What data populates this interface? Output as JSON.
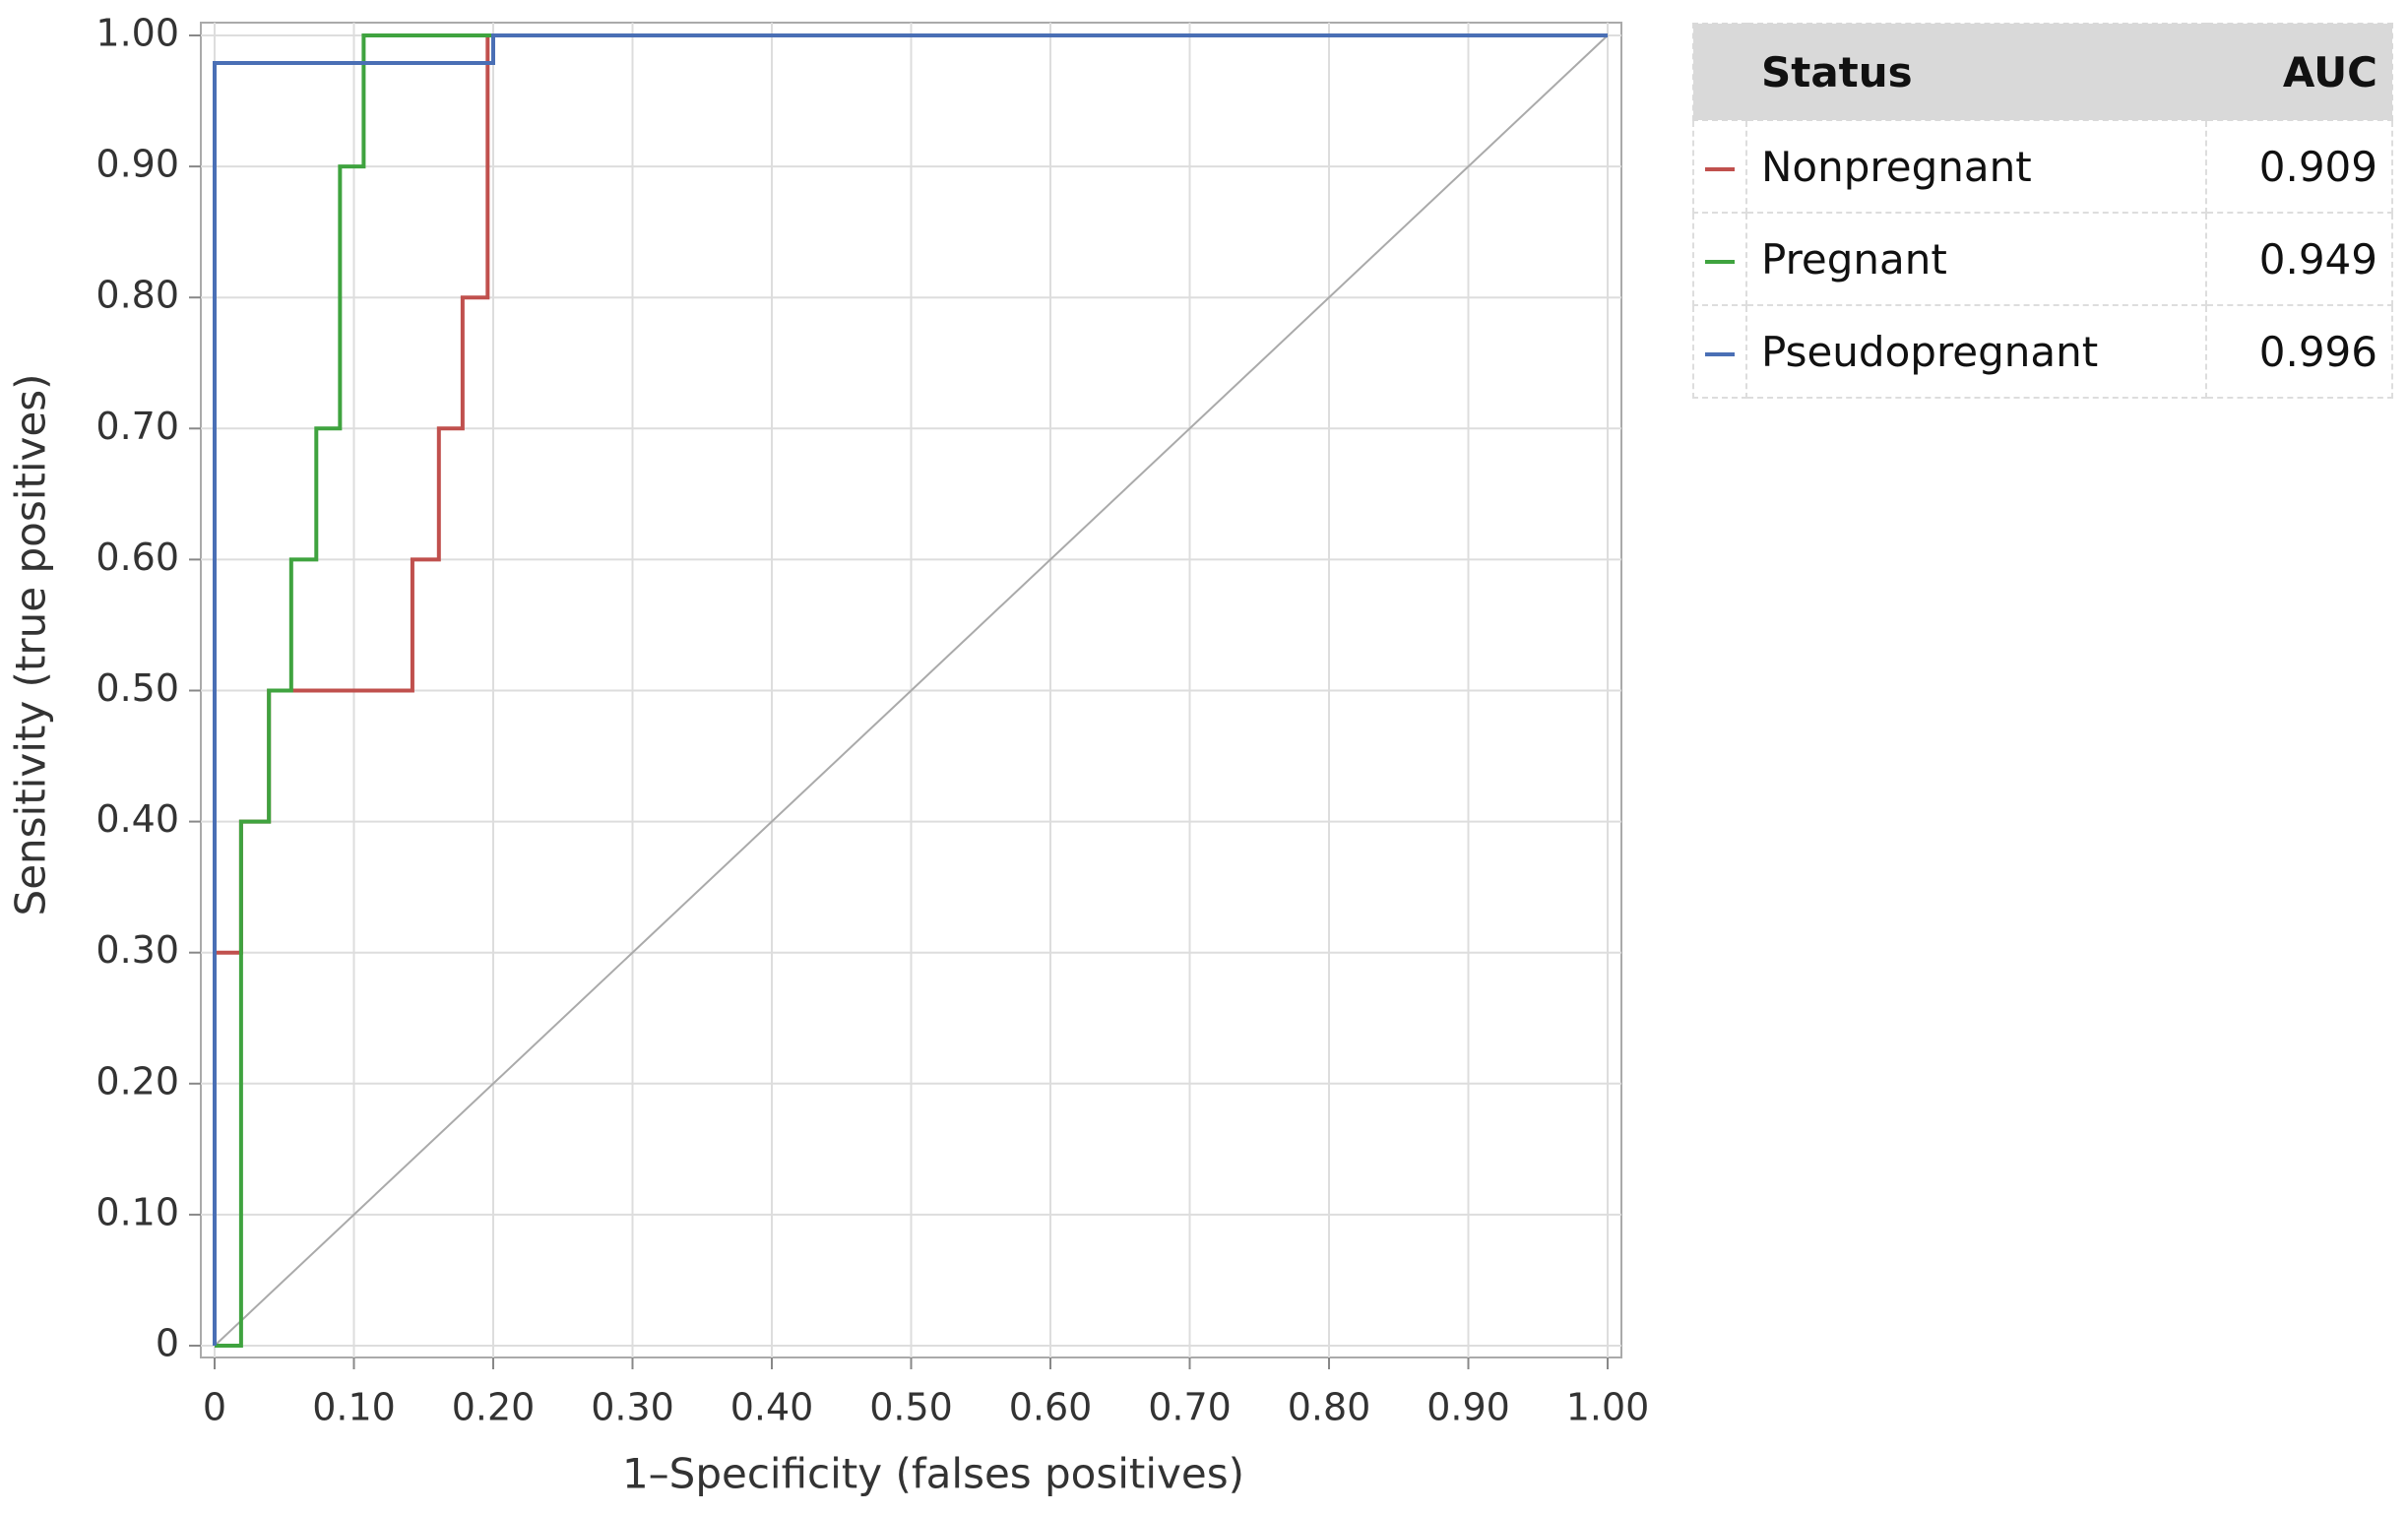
{
  "chart_data": {
    "type": "line",
    "xlabel": "1–Specificity (falses positives)",
    "ylabel": "Sensitivity (true positives)",
    "xlim": [
      0,
      1
    ],
    "ylim": [
      0,
      1
    ],
    "xticks": [
      0,
      {
        "value": 0.1,
        "label": "0.10"
      },
      {
        "value": 0.2,
        "label": "0.20"
      },
      {
        "value": 0.3,
        "label": "0.30"
      },
      {
        "value": 0.4,
        "label": "0.40"
      },
      {
        "value": 0.5,
        "label": "0.50"
      },
      {
        "value": 0.6,
        "label": "0.60"
      },
      {
        "value": 0.7,
        "label": "0.70"
      },
      {
        "value": 0.8,
        "label": "0.80"
      },
      {
        "value": 0.9,
        "label": "0.90"
      },
      {
        "value": 1,
        "label": "1.00"
      }
    ],
    "yticks": [
      0,
      {
        "value": 0.1,
        "label": "0.10"
      },
      {
        "value": 0.2,
        "label": "0.20"
      },
      {
        "value": 0.3,
        "label": "0.30"
      },
      {
        "value": 0.4,
        "label": "0.40"
      },
      {
        "value": 0.5,
        "label": "0.50"
      },
      {
        "value": 0.6,
        "label": "0.60"
      },
      {
        "value": 0.7,
        "label": "0.70"
      },
      {
        "value": 0.8,
        "label": "0.80"
      },
      {
        "value": 0.9,
        "label": "0.90"
      },
      {
        "value": 1,
        "label": "1.00"
      }
    ],
    "grid": true,
    "legend_header": [
      "Status",
      "AUC"
    ],
    "series": [
      {
        "name": "Nonpregnant",
        "color": "#c0504d",
        "auc": 0.909,
        "x": [
          0,
          0,
          0.019,
          0.019,
          0.039,
          0.039,
          0.142,
          0.142,
          0.161,
          0.161,
          0.178,
          0.178,
          0.196,
          0.196,
          1
        ],
        "values": [
          0,
          0.3,
          0.3,
          0.4,
          0.4,
          0.5,
          0.5,
          0.6,
          0.6,
          0.7,
          0.7,
          0.8,
          0.8,
          1,
          1
        ]
      },
      {
        "name": "Pregnant",
        "color": "#3fa33f",
        "auc": 0.949,
        "x": [
          0,
          0.019,
          0.019,
          0.039,
          0.039,
          0.055,
          0.055,
          0.073,
          0.073,
          0.09,
          0.09,
          0.107,
          0.107,
          1
        ],
        "values": [
          0,
          0,
          0.4,
          0.4,
          0.5,
          0.5,
          0.6,
          0.6,
          0.7,
          0.7,
          0.9,
          0.9,
          1,
          1
        ]
      },
      {
        "name": "Pseudopregnant",
        "color": "#4a6fb5",
        "auc": 0.996,
        "x": [
          0,
          0,
          0.2,
          0.2,
          1
        ],
        "values": [
          0,
          0.979,
          0.979,
          1,
          1
        ]
      }
    ]
  }
}
